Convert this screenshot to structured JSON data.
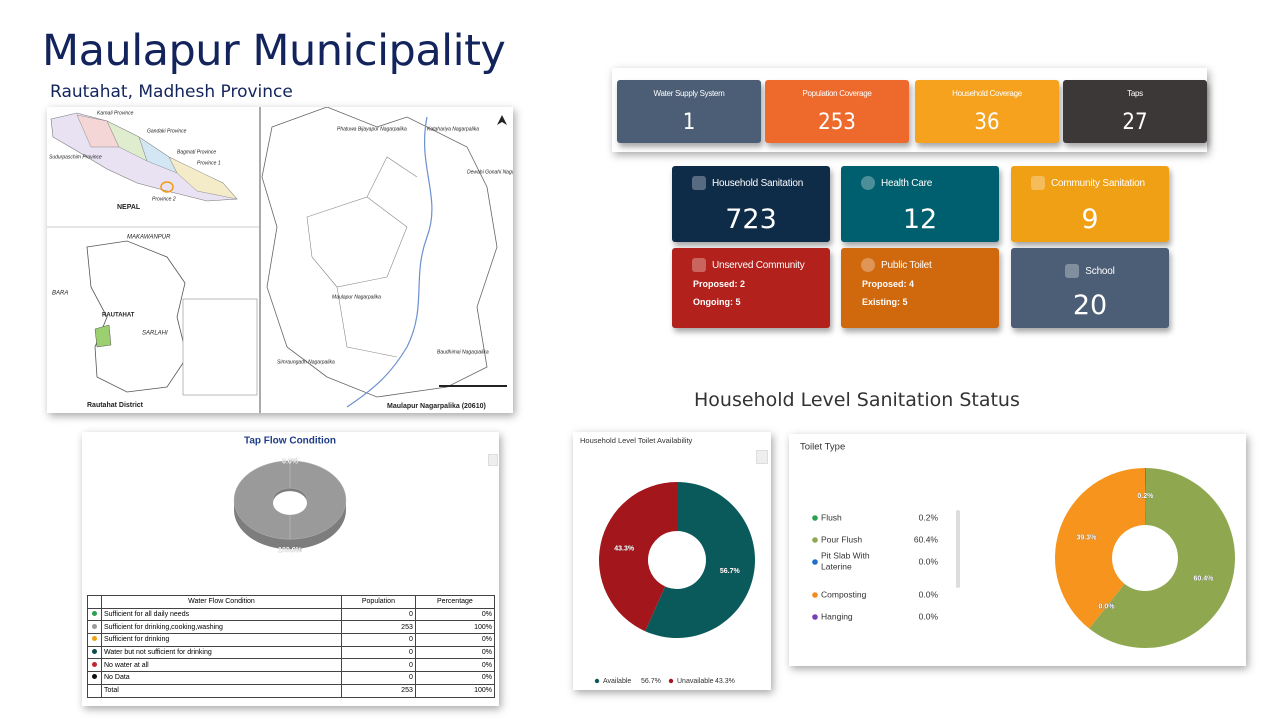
{
  "header": {
    "title": "Maulapur Municipality",
    "subtitle": "Rautahat, Madhesh Province"
  },
  "map": {
    "labels": [
      "Karnali Province",
      "Gandaki Province",
      "Bagmati Province",
      "Sudurpaschim Province",
      "Province 1",
      "Province 2",
      "NEPAL",
      "MAKAWANPUR",
      "BARA",
      "RAUTAHAT",
      "SARLAHI",
      "Rautahat District",
      "Phatuwa Bijayapur Nagarpalika",
      "Katahariya Nagarpalika",
      "Dewahi Gonahi Nagarpalika",
      "Maulapur Nagarpalika",
      "Simraungadh Nagarpalika",
      "Baudhimai Nagarpalika",
      "Maulapur Nagarpalika (20610)"
    ]
  },
  "summary_cards": [
    {
      "label": "Water Supply System",
      "value": 1,
      "color": "#4b5e75"
    },
    {
      "label": "Population Coverage",
      "value": 253,
      "color": "#ee6a2c"
    },
    {
      "label": "Household Coverage",
      "value": 36,
      "color": "#f7a21f"
    },
    {
      "label": "Taps",
      "value": 27,
      "color": "#3d3838"
    }
  ],
  "service_cards": [
    {
      "label": "Household Sanitation",
      "value": 723,
      "color": "#0e2c48"
    },
    {
      "label": "Health Care",
      "value": 12,
      "color": "#005f6e"
    },
    {
      "label": "Community Sanitation",
      "value": 9,
      "color": "#f0a015"
    },
    {
      "label": "Unserved Community",
      "details": [
        "Proposed: 2",
        "Ongoing: 5"
      ],
      "color": "#b2211b"
    },
    {
      "label": "Public Toilet",
      "details": [
        "Proposed: 4",
        "Existing: 5"
      ],
      "color": "#d0680e"
    },
    {
      "label": "School",
      "value": 20,
      "color": "#4b5e75"
    }
  ],
  "section_title": "Household Level Sanitation Status",
  "chart_data": [
    {
      "type": "pie3d",
      "title": "Tap Flow Condition",
      "values": [
        0,
        100
      ],
      "value_labels": [
        "0.0%",
        "100.0%"
      ],
      "colors": [
        "#9a9a9a",
        "#9a9a9a"
      ]
    },
    {
      "type": "donut",
      "title": "Household Level Toilet Availability",
      "categories": [
        "Available",
        "Unavailable"
      ],
      "values": [
        56.7,
        43.3
      ],
      "value_labels": [
        "56.7%",
        "43.3%"
      ],
      "colors": [
        "#0b5a5b",
        "#a3161c"
      ],
      "legend": "bottom"
    },
    {
      "type": "donut",
      "title": "Toilet Type",
      "categories": [
        "Flush",
        "Pour Flush",
        "Pit Slab With Laterine",
        "Composting",
        "Hanging",
        null
      ],
      "values": [
        0.2,
        60.4,
        0.0,
        0.0,
        0.0,
        39.3
      ],
      "value_labels": [
        "0.2%",
        "60.4%",
        "0.0%",
        "0.0%",
        "0.0%",
        "39.3%"
      ],
      "colors": [
        "#2e9e4f",
        "#8fa84f",
        "#1f6fc5",
        "#f28c1e",
        "#7b3fb5",
        "#f7941d"
      ],
      "legend": "left"
    }
  ],
  "tap_flow_table": {
    "header": [
      "Water Flow Condition",
      "Population",
      "Percentage"
    ],
    "rows": [
      {
        "name": "Sufficient for all daily needs",
        "population": 0,
        "percentage": "0%",
        "color": "#2e9e4f"
      },
      {
        "name": "Sufficient for drinking,cooking,washing",
        "population": 253,
        "percentage": "100%",
        "color": "#9a9a9a"
      },
      {
        "name": "Sufficient for drinking",
        "population": 0,
        "percentage": "0%",
        "color": "#f0a015"
      },
      {
        "name": "Water but not sufficient for drinking",
        "population": 0,
        "percentage": "0%",
        "color": "#0b4a4b"
      },
      {
        "name": "No water at all",
        "population": 0,
        "percentage": "0%",
        "color": "#c0262d"
      },
      {
        "name": "No Data",
        "population": 0,
        "percentage": "0%",
        "color": "#111111"
      }
    ],
    "total": {
      "name": "Total",
      "population": 253,
      "percentage": "100%"
    }
  }
}
